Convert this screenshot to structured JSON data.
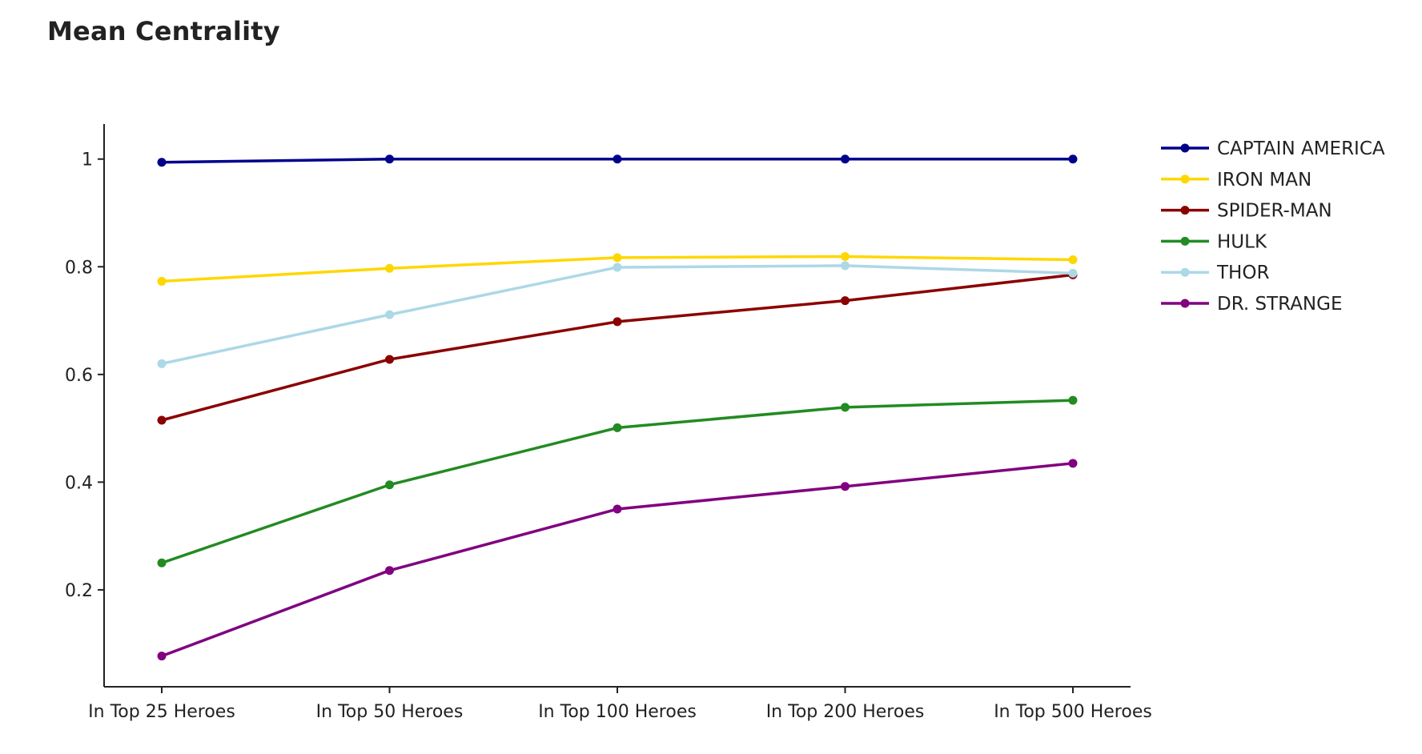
{
  "chart_data": {
    "type": "line",
    "title": "Mean Centrality",
    "xlabel": "",
    "ylabel": "",
    "categories": [
      "In Top 25 Heroes",
      "In Top 50 Heroes",
      "In Top 100 Heroes",
      "In Top 200 Heroes",
      "In Top 500 Heroes"
    ],
    "ylim": [
      0.02,
      1.065
    ],
    "yticks": [
      0.2,
      0.4,
      0.6,
      0.8,
      1
    ],
    "ytick_labels": [
      "0.2",
      "0.4",
      "0.6",
      "0.8",
      "1"
    ],
    "grid": false,
    "legend_position": "top-right",
    "series": [
      {
        "name": "CAPTAIN AMERICA",
        "color": "#00008b",
        "values": [
          0.994,
          1.0,
          1.0,
          1.0,
          1.0
        ]
      },
      {
        "name": "IRON MAN",
        "color": "#ffd700",
        "values": [
          0.773,
          0.797,
          0.817,
          0.819,
          0.813
        ]
      },
      {
        "name": "SPIDER-MAN",
        "color": "#8b0000",
        "values": [
          0.515,
          0.628,
          0.698,
          0.737,
          0.785
        ]
      },
      {
        "name": "HULK",
        "color": "#228b22",
        "values": [
          0.25,
          0.395,
          0.501,
          0.539,
          0.552
        ]
      },
      {
        "name": "THOR",
        "color": "#add8e6",
        "values": [
          0.62,
          0.711,
          0.799,
          0.802,
          0.788
        ]
      },
      {
        "name": "DR. STRANGE",
        "color": "#800080",
        "values": [
          0.077,
          0.236,
          0.35,
          0.392,
          0.435
        ]
      }
    ]
  }
}
